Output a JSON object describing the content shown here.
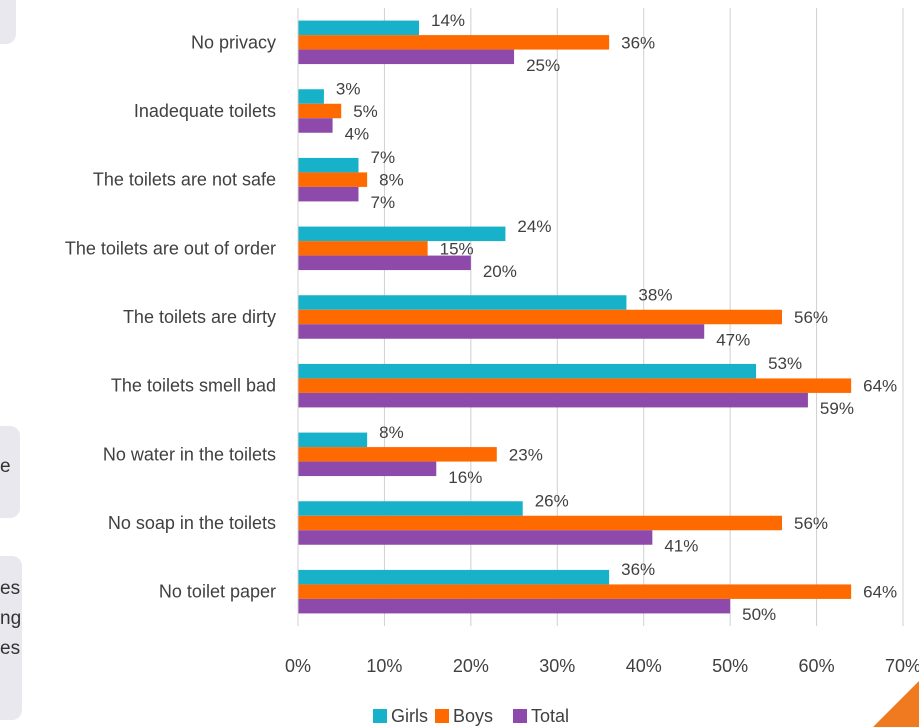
{
  "side_fragments": [
    {
      "lines": [
        ""
      ]
    },
    {
      "lines": [
        "e"
      ]
    },
    {
      "lines": [
        "es",
        "ng",
        "es"
      ]
    }
  ],
  "colors": {
    "girls": "#17b2c9",
    "boys": "#ff6a00",
    "total": "#8e4aaa",
    "grid": "#d0d0d0",
    "text": "#404040",
    "accent_triangle": "#f07a1f"
  },
  "chart_data": {
    "type": "bar",
    "orientation": "horizontal",
    "categories": [
      "No privacy",
      "Inadequate toilets",
      "The toilets are not safe",
      "The toilets are out of order",
      "The toilets are dirty",
      "The toilets smell bad",
      "No water in the toilets",
      "No soap in the toilets",
      "No toilet paper"
    ],
    "series": [
      {
        "name": "Girls",
        "values": [
          14,
          3,
          7,
          24,
          38,
          53,
          8,
          26,
          36
        ],
        "labels": [
          "14%",
          "3%",
          "7%",
          "24%",
          "38%",
          "53%",
          "8%",
          "26%",
          "36%"
        ]
      },
      {
        "name": "Boys",
        "values": [
          36,
          5,
          8,
          15,
          56,
          64,
          23,
          56,
          64
        ],
        "labels": [
          "36%",
          "5%",
          "8%",
          "15%",
          "56%",
          "64%",
          "23%",
          "56%",
          "64%"
        ]
      },
      {
        "name": "Total",
        "values": [
          25,
          4,
          7,
          20,
          47,
          59,
          16,
          41,
          50
        ],
        "labels": [
          "25%",
          "4%",
          "7%",
          "20%",
          "47%",
          "59%",
          "16%",
          "41%",
          "50%"
        ]
      }
    ],
    "x_ticks": [
      "0%",
      "10%",
      "20%",
      "30%",
      "40%",
      "50%",
      "60%",
      "70%"
    ],
    "xlim": [
      0,
      70
    ],
    "title": "",
    "xlabel": "",
    "ylabel": "",
    "grid": "vertical",
    "legend_position": "bottom"
  }
}
